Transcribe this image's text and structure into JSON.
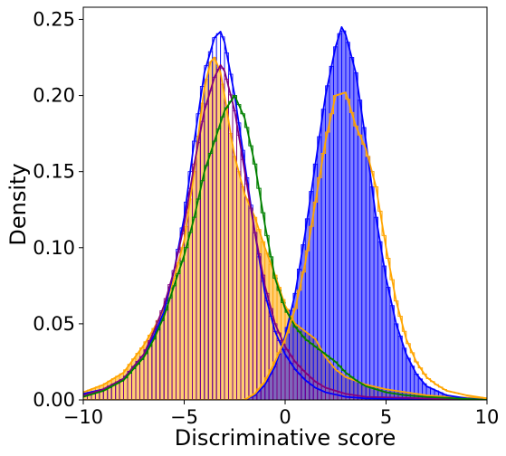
{
  "chart_data": {
    "type": "histogram",
    "xlabel": "Discriminative score",
    "ylabel": "Density",
    "xlim": [
      -10,
      10
    ],
    "ylim": [
      0,
      0.258
    ],
    "x_ticks": [
      -10,
      -5,
      0,
      5,
      10
    ],
    "x_tick_labels": [
      "−10",
      "−5",
      "0",
      "5",
      "10"
    ],
    "y_ticks": [
      0.0,
      0.05,
      0.1,
      0.15,
      0.2,
      0.25
    ],
    "y_tick_labels": [
      "0.00",
      "0.05",
      "0.10",
      "0.15",
      "0.20",
      "0.25"
    ],
    "grid": false,
    "legend": "none",
    "bin_width": 0.2,
    "series": [
      {
        "color": "#ffa500",
        "filled": true,
        "fill_opacity": 0.55,
        "hist_style": "bars",
        "kde": [
          [
            -10,
            0.005
          ],
          [
            -9,
            0.01
          ],
          [
            -8,
            0.018
          ],
          [
            -7,
            0.036
          ],
          [
            -6.5,
            0.047
          ],
          [
            -6,
            0.06
          ],
          [
            -5.5,
            0.08
          ],
          [
            -5,
            0.105
          ],
          [
            -4.5,
            0.15
          ],
          [
            -4.2,
            0.185
          ],
          [
            -4.0,
            0.205
          ],
          [
            -3.7,
            0.222
          ],
          [
            -3.5,
            0.225
          ],
          [
            -3.2,
            0.215
          ],
          [
            -3.0,
            0.2
          ],
          [
            -2.7,
            0.175
          ],
          [
            -2.5,
            0.16
          ],
          [
            -2.0,
            0.135
          ],
          [
            -1.5,
            0.12
          ],
          [
            -1.0,
            0.1
          ],
          [
            -0.5,
            0.082
          ],
          [
            0,
            0.062
          ],
          [
            0.5,
            0.05
          ],
          [
            1.0,
            0.045
          ],
          [
            1.5,
            0.04
          ],
          [
            2.0,
            0.028
          ],
          [
            2.5,
            0.02
          ],
          [
            3.0,
            0.015
          ],
          [
            4.0,
            0.01
          ],
          [
            5.0,
            0.007
          ],
          [
            6.0,
            0.005
          ],
          [
            7.0,
            0.003
          ],
          [
            8.0,
            0.002
          ],
          [
            10,
            0.001
          ]
        ]
      },
      {
        "color": "#0000ff",
        "filled": true,
        "fill_opacity": 0.5,
        "hist_style": "bars",
        "kde": [
          [
            -10,
            0
          ],
          [
            -2,
            0
          ],
          [
            -1.5,
            0.003
          ],
          [
            -1,
            0.01
          ],
          [
            -0.5,
            0.022
          ],
          [
            0,
            0.042
          ],
          [
            0.5,
            0.07
          ],
          [
            1.0,
            0.11
          ],
          [
            1.5,
            0.155
          ],
          [
            2.0,
            0.2
          ],
          [
            2.5,
            0.232
          ],
          [
            2.8,
            0.245
          ],
          [
            3.0,
            0.24
          ],
          [
            3.5,
            0.215
          ],
          [
            4.0,
            0.17
          ],
          [
            4.5,
            0.12
          ],
          [
            5.0,
            0.08
          ],
          [
            5.5,
            0.05
          ],
          [
            6.0,
            0.03
          ],
          [
            6.5,
            0.017
          ],
          [
            7.0,
            0.009
          ],
          [
            8.0,
            0.003
          ],
          [
            9.0,
            0.001
          ],
          [
            10,
            0
          ]
        ]
      },
      {
        "color": "#0000ff",
        "filled": false,
        "hist_style": "bars",
        "kde": [
          [
            -10,
            0.004
          ],
          [
            -9,
            0.007
          ],
          [
            -8,
            0.014
          ],
          [
            -7,
            0.03
          ],
          [
            -6.5,
            0.042
          ],
          [
            -6,
            0.058
          ],
          [
            -5.5,
            0.085
          ],
          [
            -5,
            0.12
          ],
          [
            -4.5,
            0.17
          ],
          [
            -4.0,
            0.215
          ],
          [
            -3.5,
            0.238
          ],
          [
            -3.2,
            0.242
          ],
          [
            -3.0,
            0.235
          ],
          [
            -2.5,
            0.2
          ],
          [
            -2.0,
            0.155
          ],
          [
            -1.5,
            0.11
          ],
          [
            -1.0,
            0.07
          ],
          [
            -0.5,
            0.045
          ],
          [
            0,
            0.03
          ],
          [
            0.5,
            0.02
          ],
          [
            1.0,
            0.013
          ],
          [
            1.5,
            0.008
          ],
          [
            2.0,
            0.005
          ],
          [
            3.0,
            0.002
          ],
          [
            4.0,
            0.001
          ],
          [
            10,
            0
          ]
        ]
      },
      {
        "color": "#800080",
        "filled": false,
        "hist_style": "bars",
        "kde": [
          [
            -10,
            0.003
          ],
          [
            -9,
            0.007
          ],
          [
            -8,
            0.014
          ],
          [
            -7,
            0.03
          ],
          [
            -6.5,
            0.045
          ],
          [
            -6,
            0.062
          ],
          [
            -5.5,
            0.085
          ],
          [
            -5,
            0.115
          ],
          [
            -4.5,
            0.155
          ],
          [
            -4.0,
            0.19
          ],
          [
            -3.5,
            0.212
          ],
          [
            -3.2,
            0.22
          ],
          [
            -3.0,
            0.216
          ],
          [
            -2.5,
            0.19
          ],
          [
            -2.0,
            0.15
          ],
          [
            -1.5,
            0.11
          ],
          [
            -1.0,
            0.075
          ],
          [
            -0.5,
            0.05
          ],
          [
            0,
            0.035
          ],
          [
            0.5,
            0.025
          ],
          [
            1.0,
            0.018
          ],
          [
            1.5,
            0.012
          ],
          [
            2.0,
            0.008
          ],
          [
            3.0,
            0.004
          ],
          [
            4.0,
            0.002
          ],
          [
            10,
            0
          ]
        ]
      },
      {
        "color": "#008000",
        "filled": false,
        "hist_style": "steps",
        "kde": [
          [
            -10,
            0.002
          ],
          [
            -9,
            0.006
          ],
          [
            -8,
            0.013
          ],
          [
            -7,
            0.028
          ],
          [
            -6.5,
            0.04
          ],
          [
            -6,
            0.055
          ],
          [
            -5.5,
            0.075
          ],
          [
            -5,
            0.095
          ],
          [
            -4.5,
            0.12
          ],
          [
            -4.0,
            0.15
          ],
          [
            -3.5,
            0.17
          ],
          [
            -3.0,
            0.19
          ],
          [
            -2.5,
            0.2
          ],
          [
            -2.0,
            0.185
          ],
          [
            -1.5,
            0.155
          ],
          [
            -1.0,
            0.115
          ],
          [
            -0.5,
            0.08
          ],
          [
            0,
            0.06
          ],
          [
            0.5,
            0.048
          ],
          [
            1.0,
            0.04
          ],
          [
            1.5,
            0.035
          ],
          [
            2.0,
            0.03
          ],
          [
            2.5,
            0.025
          ],
          [
            3.0,
            0.018
          ],
          [
            3.5,
            0.013
          ],
          [
            4.0,
            0.009
          ],
          [
            5.0,
            0.005
          ],
          [
            6.0,
            0.003
          ],
          [
            7.0,
            0.002
          ],
          [
            10,
            0
          ]
        ]
      },
      {
        "color": "#ffa500",
        "filled": false,
        "hist_style": "steps",
        "kde": [
          [
            -10,
            0
          ],
          [
            -2,
            0
          ],
          [
            -1.5,
            0.004
          ],
          [
            -1,
            0.012
          ],
          [
            -0.5,
            0.025
          ],
          [
            0,
            0.04
          ],
          [
            0.5,
            0.06
          ],
          [
            1.0,
            0.09
          ],
          [
            1.5,
            0.13
          ],
          [
            2.0,
            0.17
          ],
          [
            2.5,
            0.2
          ],
          [
            3.0,
            0.202
          ],
          [
            3.5,
            0.18
          ],
          [
            4.0,
            0.165
          ],
          [
            4.5,
            0.14
          ],
          [
            5.0,
            0.1
          ],
          [
            5.5,
            0.065
          ],
          [
            6.0,
            0.04
          ],
          [
            6.5,
            0.025
          ],
          [
            7.0,
            0.015
          ],
          [
            7.5,
            0.01
          ],
          [
            8.0,
            0.006
          ],
          [
            9.0,
            0.003
          ],
          [
            10,
            0.001
          ]
        ]
      }
    ]
  }
}
